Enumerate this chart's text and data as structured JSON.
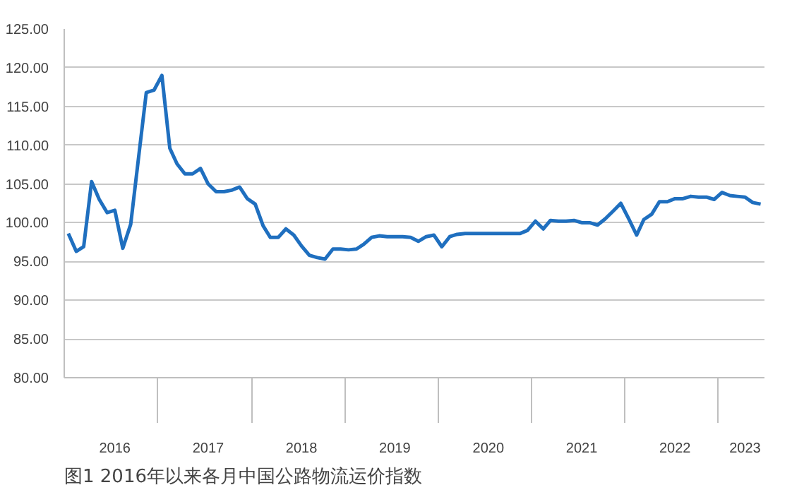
{
  "chart_data": {
    "type": "line",
    "title": "图1  2016年以来各月中国公路物流运价指数",
    "x": [
      "2016-01",
      "2016-02",
      "2016-03",
      "2016-04",
      "2016-05",
      "2016-06",
      "2016-07",
      "2016-08",
      "2016-09",
      "2016-10",
      "2016-11",
      "2016-12",
      "2017-01",
      "2017-02",
      "2017-03",
      "2017-04",
      "2017-05",
      "2017-06",
      "2017-07",
      "2017-08",
      "2017-09",
      "2017-10",
      "2017-11",
      "2017-12",
      "2018-01",
      "2018-02",
      "2018-03",
      "2018-04",
      "2018-05",
      "2018-06",
      "2018-07",
      "2018-08",
      "2018-09",
      "2018-10",
      "2018-11",
      "2018-12",
      "2019-01",
      "2019-02",
      "2019-03",
      "2019-04",
      "2019-05",
      "2019-06",
      "2019-07",
      "2019-08",
      "2019-09",
      "2019-10",
      "2019-11",
      "2019-12",
      "2020-01",
      "2020-02",
      "2020-03",
      "2020-04",
      "2020-05",
      "2020-06",
      "2020-07",
      "2020-08",
      "2020-09",
      "2020-10",
      "2020-11",
      "2020-12",
      "2021-01",
      "2021-02",
      "2021-03",
      "2021-04",
      "2021-05",
      "2021-06",
      "2021-07",
      "2021-08",
      "2021-09",
      "2021-10",
      "2021-11",
      "2021-12",
      "2022-01",
      "2022-02",
      "2022-03",
      "2022-04",
      "2022-05",
      "2022-06",
      "2022-07",
      "2022-08",
      "2022-09",
      "2022-10",
      "2022-11",
      "2022-12",
      "2023-01",
      "2023-02",
      "2023-03",
      "2023-04",
      "2023-05",
      "2023-06"
    ],
    "series": [
      {
        "color": "#1f6fbf",
        "values": [
          98.6,
          96.3,
          96.9,
          105.3,
          103.0,
          101.3,
          101.6,
          96.7,
          99.8,
          108.2,
          116.8,
          117.1,
          119.0,
          109.6,
          107.6,
          106.3,
          106.3,
          107.0,
          105.0,
          104.0,
          104.0,
          104.2,
          104.6,
          103.1,
          102.4,
          99.6,
          98.1,
          98.1,
          99.2,
          98.4,
          97.0,
          95.8,
          95.5,
          95.3,
          96.6,
          96.6,
          96.5,
          96.6,
          97.2,
          98.1,
          98.3,
          98.2,
          98.2,
          98.2,
          98.1,
          97.6,
          98.2,
          98.4,
          96.9,
          98.2,
          98.5,
          98.6,
          98.6,
          98.6,
          98.6,
          98.6,
          98.6,
          98.6,
          98.6,
          99.0,
          100.2,
          99.2,
          100.3,
          100.2,
          100.2,
          100.3,
          100.0,
          100.0,
          99.7,
          100.5,
          101.5,
          102.5,
          100.5,
          98.4,
          100.4,
          101.1,
          102.7,
          102.7,
          103.1,
          103.1,
          103.4,
          103.3,
          103.3,
          103.0,
          103.9,
          103.5,
          103.4,
          103.3,
          102.6,
          102.4
        ]
      }
    ],
    "xlim": [
      "2015-12-16",
      "2023-06-16"
    ],
    "xticks": [
      {
        "value": "2016-07-01",
        "label": "2016"
      },
      {
        "value": "2017-07-01",
        "label": "2017"
      },
      {
        "value": "2018-07-01",
        "label": "2018"
      },
      {
        "value": "2019-07-01",
        "label": "2019"
      },
      {
        "value": "2020-07-01",
        "label": "2020"
      },
      {
        "value": "2021-07-01",
        "label": "2021"
      },
      {
        "value": "2022-07-01",
        "label": "2022"
      },
      {
        "value": "2023-04-01",
        "label": "2023"
      }
    ],
    "ylim": [
      80,
      125
    ],
    "yticks": [
      {
        "value": 80,
        "label": "80.00"
      },
      {
        "value": 85,
        "label": "85.00"
      },
      {
        "value": 90,
        "label": "90.00"
      },
      {
        "value": 95,
        "label": "95.00"
      },
      {
        "value": 100,
        "label": "100.00"
      },
      {
        "value": 105,
        "label": "105.00"
      },
      {
        "value": 110,
        "label": "110.00"
      },
      {
        "value": 115,
        "label": "115.00"
      },
      {
        "value": 120,
        "label": "120.00"
      },
      {
        "value": 125,
        "label": "125.00"
      }
    ],
    "grid": "y",
    "marker": "none",
    "line_style": "solid"
  }
}
